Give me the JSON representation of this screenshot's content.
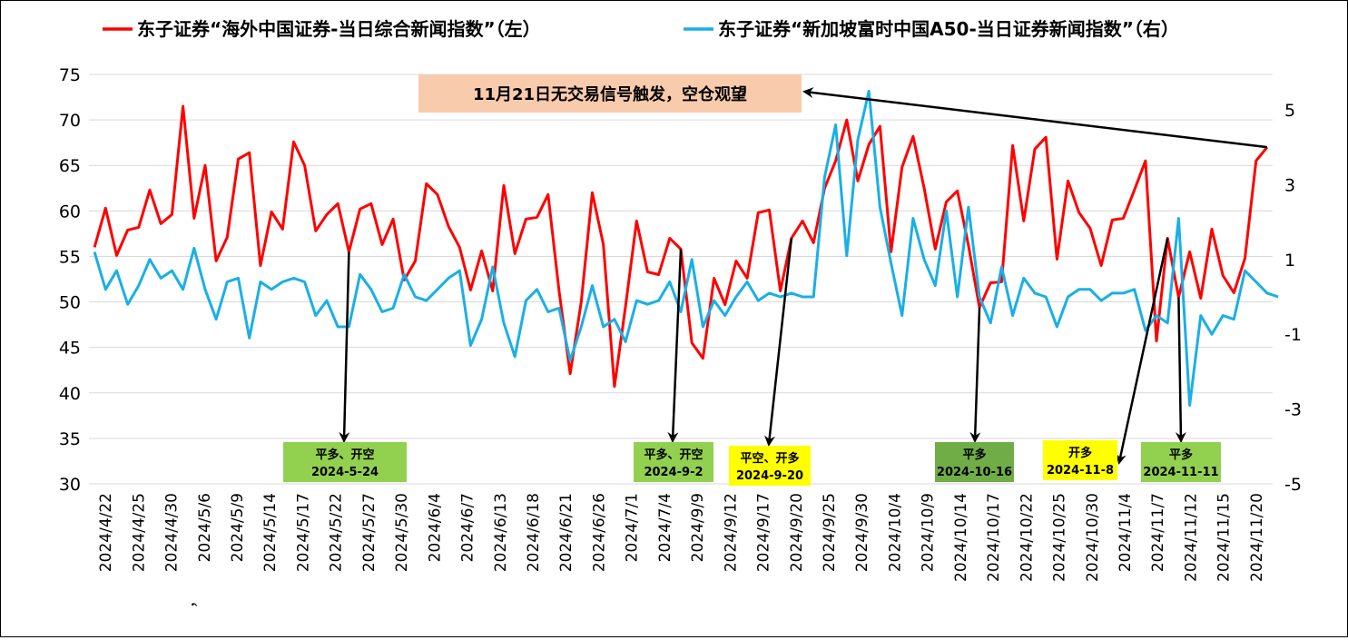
{
  "chart_data": {
    "type": "line",
    "legend": {
      "placement": "top",
      "entries": [
        {
          "name": "东子证券“海外中国证券-当日综合新闻指数”（左）",
          "color": "#FF0000"
        },
        {
          "name": "东子证券“新加坡富时中国A50-当日证券新闻指数”（右）",
          "color": "#1AAFE6"
        }
      ]
    },
    "y_left": {
      "min": 30,
      "max": 75,
      "ticks": [
        30,
        35,
        40,
        45,
        50,
        55,
        60,
        65,
        70,
        75
      ]
    },
    "y_right": {
      "min": -5,
      "max": 6,
      "ticks": [
        -5,
        -3,
        -1,
        1,
        3,
        5
      ]
    },
    "x_tick_labels": [
      "2024/4/22",
      "2024/4/25",
      "2024/4/30",
      "2024/5/6",
      "2024/5/9",
      "2024/5/14",
      "2024/5/17",
      "2024/5/22",
      "2024/5/27",
      "2024/5/30",
      "2024/6/4",
      "2024/6/7",
      "2024/6/13",
      "2024/6/18",
      "2024/6/21",
      "2024/6/26",
      "2024/7/1",
      "2024/7/4",
      "2024/9/9",
      "2024/9/12",
      "2024/9/17",
      "2024/9/20",
      "2024/9/25",
      "2024/9/30",
      "2024/10/4",
      "2024/10/9",
      "2024/10/14",
      "2024/10/17",
      "2024/10/22",
      "2024/10/25",
      "2024/10/30",
      "2024/11/4",
      "2024/11/7",
      "2024/11/12",
      "2024/11/15",
      "2024/11/20"
    ],
    "stray_label": "，",
    "series": [
      {
        "name": "东子证券“海外中国证券-当日综合新闻指数”（左）",
        "axis": "left",
        "color": "#FF0000",
        "values": [
          56,
          60.3,
          55.1,
          57.9,
          58.2,
          62.3,
          58.6,
          59.6,
          71.5,
          59.2,
          65,
          54.5,
          57.1,
          65.7,
          66.4,
          54,
          59.9,
          58,
          67.6,
          65,
          57.8,
          59.6,
          60.8,
          55.5,
          60.2,
          60.8,
          56.3,
          59.1,
          52.4,
          54.5,
          63,
          61.8,
          58.3,
          56,
          51.3,
          55.6,
          51.2,
          62.8,
          55.3,
          59.1,
          59.3,
          61.8,
          51.2,
          42.1,
          50,
          62,
          56.3,
          40.7,
          49.5,
          58.9,
          53.3,
          53,
          57,
          55.8,
          45.5,
          43.8,
          52.6,
          49.7,
          54.5,
          52.6,
          59.8,
          60.1,
          51.2,
          57,
          58.9,
          56.5,
          62.5,
          65.5,
          70,
          63.3,
          67.3,
          69.3,
          55.5,
          64.8,
          68.2,
          62.5,
          55.8,
          61,
          62.2,
          56.2,
          49.4,
          52.1,
          52.2,
          67.2,
          58.9,
          66.8,
          68.1,
          54.7,
          63.3,
          59.8,
          58.1,
          54,
          59,
          59.2,
          62.3,
          65.5,
          45.7,
          57,
          50.5,
          55.5,
          50.4,
          58,
          52.9,
          51,
          54.8,
          65.5,
          67
        ]
      },
      {
        "name": "东子证券“新加坡富时中国A50-当日证券新闻指数”（右）",
        "axis": "right",
        "color": "#1AAFE6",
        "values": [
          1.2,
          0.2,
          0.7,
          -0.2,
          0.3,
          1,
          0.5,
          0.7,
          0.2,
          1.3,
          0.2,
          -0.6,
          0.4,
          0.5,
          -1.1,
          0.4,
          0.2,
          0.4,
          0.5,
          0.4,
          -0.5,
          -0.1,
          -0.8,
          -0.8,
          0.6,
          0.2,
          -0.4,
          -0.3,
          0.6,
          0,
          -0.1,
          0.2,
          0.5,
          0.7,
          -1.3,
          -0.6,
          0.8,
          -0.7,
          -1.6,
          -0.1,
          0.2,
          -0.4,
          -0.3,
          -1.7,
          -0.8,
          0.3,
          -0.8,
          -0.6,
          -1.2,
          -0.1,
          -0.2,
          -0.1,
          0.4,
          -0.4,
          1,
          -0.8,
          -0.1,
          -0.5,
          0,
          0.4,
          -0.1,
          0.1,
          0,
          0.1,
          0,
          0,
          3.2,
          4.6,
          1.1,
          4.2,
          5.5,
          2.4,
          0.9,
          -0.5,
          2.1,
          1,
          0.3,
          2.3,
          0,
          2.4,
          0,
          -0.7,
          0.8,
          -0.5,
          0.5,
          0.1,
          0,
          -0.8,
          0,
          0.2,
          0.2,
          -0.1,
          0.1,
          0.1,
          0.2,
          -0.9,
          -0.5,
          -0.7,
          2.1,
          -2.9,
          -0.5,
          -1,
          -0.5,
          -0.6,
          0.7,
          0.4,
          0.1,
          0
        ]
      }
    ],
    "annotations": {
      "note": {
        "text": "11月21日无交易信号触发，空仓观望",
        "color": "#F8CBAD"
      },
      "signals": [
        {
          "line1": "平多、开空",
          "line2": "2024-5-24",
          "color": "#92D050",
          "index": 23
        },
        {
          "line1": "平多、开空",
          "line2": "2024-9-2",
          "color": "#92D050",
          "index": 53
        },
        {
          "line1": "平空、开多",
          "line2": "2024-9-20",
          "color": "#FFFF00",
          "index": 63
        },
        {
          "line1": "平多",
          "line2": "2024-10-16",
          "color": "#70AD47",
          "index": 80
        },
        {
          "line1": "开多",
          "line2": "2024-11-8",
          "color": "#FFFF00",
          "index": 97
        },
        {
          "line1": "平多",
          "line2": "2024-11-11",
          "color": "#92D050",
          "index": 98
        }
      ]
    }
  }
}
